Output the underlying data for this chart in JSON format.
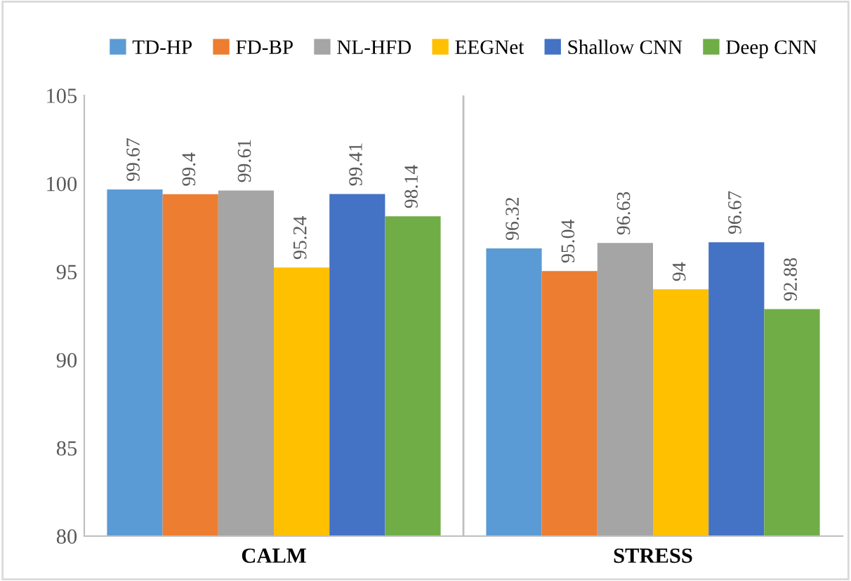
{
  "chart_data": {
    "type": "bar",
    "categories": [
      "CALM",
      "STRESS"
    ],
    "series": [
      {
        "name": "TD-HP",
        "color": "#5b9bd5",
        "values": [
          99.67,
          96.32
        ]
      },
      {
        "name": "FD-BP",
        "color": "#ed7d31",
        "values": [
          99.4,
          95.04
        ]
      },
      {
        "name": "NL-HFD",
        "color": "#a5a5a5",
        "values": [
          99.61,
          96.63
        ]
      },
      {
        "name": "EEGNet",
        "color": "#ffc000",
        "values": [
          95.24,
          94
        ]
      },
      {
        "name": "Shallow CNN",
        "color": "#4472c4",
        "values": [
          99.41,
          96.67
        ]
      },
      {
        "name": "Deep CNN",
        "color": "#70ad47",
        "values": [
          98.14,
          92.88
        ]
      }
    ],
    "ylim": [
      80,
      105
    ],
    "yticks": [
      80,
      85,
      90,
      95,
      100,
      105
    ],
    "data_labels": true,
    "legend": "top",
    "grid": false
  }
}
